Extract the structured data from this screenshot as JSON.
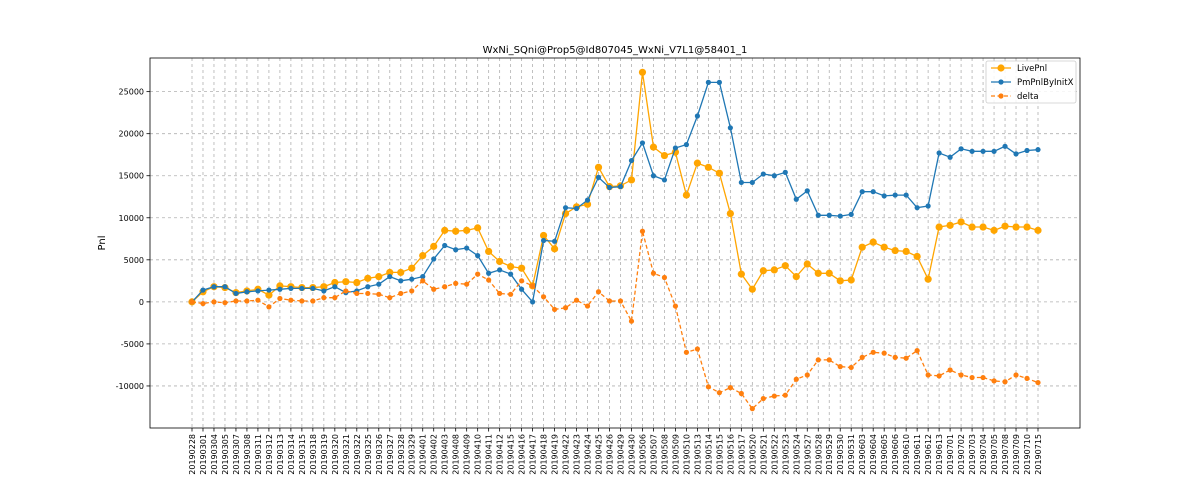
{
  "chart_data": {
    "type": "line",
    "title": "WxNi_SQni@Prop5@Id807045_WxNi_V7L1@58401_1",
    "xlabel": "",
    "ylabel": "Pnl",
    "ylim": [
      -15000,
      29000
    ],
    "yticks": [
      -10000,
      -5000,
      0,
      5000,
      10000,
      15000,
      20000,
      25000
    ],
    "grid": true,
    "legend_position": "top-right",
    "categories": [
      "20190228",
      "20190301",
      "20190304",
      "20190305",
      "20190307",
      "20190308",
      "20190311",
      "20190312",
      "20190313",
      "20190314",
      "20190315",
      "20190318",
      "20190319",
      "20190320",
      "20190321",
      "20190322",
      "20190325",
      "20190326",
      "20190327",
      "20190328",
      "20190329",
      "20190401",
      "20190402",
      "20190403",
      "20190408",
      "20190409",
      "20190410",
      "20190411",
      "20190412",
      "20190415",
      "20190416",
      "20190417",
      "20190418",
      "20190419",
      "20190422",
      "20190423",
      "20190424",
      "20190425",
      "20190426",
      "20190429",
      "20190430",
      "20190506",
      "20190507",
      "20190508",
      "20190509",
      "20190510",
      "20190513",
      "20190514",
      "20190515",
      "20190516",
      "20190517",
      "20190520",
      "20190521",
      "20190522",
      "20190523",
      "20190524",
      "20190527",
      "20190528",
      "20190529",
      "20190530",
      "20190531",
      "20190603",
      "20190604",
      "20190605",
      "20190606",
      "20190610",
      "20190611",
      "20190612",
      "20190613",
      "20190701",
      "20190702",
      "20190703",
      "20190704",
      "20190705",
      "20190708",
      "20190709",
      "20190710",
      "20190715"
    ],
    "series": [
      {
        "name": "LivePnl",
        "color": "#ffa500",
        "marker": "circle-large",
        "linestyle": "solid",
        "values": [
          0,
          1200,
          1800,
          1700,
          1100,
          1300,
          1500,
          800,
          1900,
          1800,
          1700,
          1700,
          1800,
          2300,
          2400,
          2300,
          2800,
          3000,
          3500,
          3500,
          4000,
          5500,
          6600,
          8500,
          8400,
          8500,
          8800,
          6000,
          4800,
          4200,
          4000,
          1900,
          7900,
          6300,
          10500,
          11300,
          11600,
          16000,
          13700,
          13800,
          14500,
          27300,
          18400,
          17400,
          17800,
          12700,
          16500,
          16000,
          15300,
          10500,
          3300,
          1500,
          3700,
          3800,
          4300,
          3000,
          4500,
          3400,
          3400,
          2500,
          2600,
          6500,
          7100,
          6500,
          6100,
          6000,
          5400,
          2700,
          8900,
          9100,
          9500,
          8900,
          8900,
          8500,
          9000,
          8900,
          8900,
          8500
        ]
      },
      {
        "name": "PmPnlByInitX",
        "color": "#1f77b4",
        "marker": "circle",
        "linestyle": "solid",
        "values": [
          0,
          1400,
          1800,
          1800,
          1000,
          1200,
          1300,
          1400,
          1500,
          1600,
          1600,
          1600,
          1300,
          1800,
          1100,
          1300,
          1800,
          2100,
          3000,
          2500,
          2700,
          3000,
          5100,
          6700,
          6200,
          6400,
          5500,
          3400,
          3800,
          3300,
          1500,
          0,
          7300,
          7200,
          11200,
          11100,
          12100,
          14800,
          13600,
          13700,
          16800,
          18900,
          15000,
          14500,
          18300,
          18700,
          22100,
          26100,
          26100,
          20700,
          14200,
          14200,
          15200,
          15000,
          15400,
          12200,
          13200,
          10300,
          10300,
          10200,
          10400,
          13100,
          13100,
          12600,
          12700,
          12700,
          11200,
          11400,
          17700,
          17200,
          18200,
          17900,
          17900,
          17900,
          18500,
          17600,
          18000,
          18100
        ]
      },
      {
        "name": "delta",
        "color": "#ff7f0e",
        "marker": "circle",
        "linestyle": "dashed",
        "values": [
          0,
          -200,
          0,
          -100,
          100,
          100,
          200,
          -600,
          400,
          200,
          100,
          100,
          500,
          500,
          1300,
          1000,
          1000,
          900,
          500,
          1000,
          1300,
          2500,
          1500,
          1800,
          2200,
          2100,
          3300,
          2600,
          1000,
          900,
          2500,
          1900,
          600,
          -900,
          -700,
          200,
          -500,
          1200,
          100,
          100,
          -2300,
          8400,
          3400,
          2900,
          -500,
          -6000,
          -5600,
          -10100,
          -10800,
          -10200,
          -10900,
          -12700,
          -11500,
          -11200,
          -11100,
          -9200,
          -8700,
          -6900,
          -6900,
          -7700,
          -7800,
          -6600,
          -6000,
          -6100,
          -6600,
          -6700,
          -5800,
          -8700,
          -8800,
          -8100,
          -8700,
          -9000,
          -9000,
          -9400,
          -9500,
          -8700,
          -9100,
          -9600
        ]
      }
    ]
  }
}
